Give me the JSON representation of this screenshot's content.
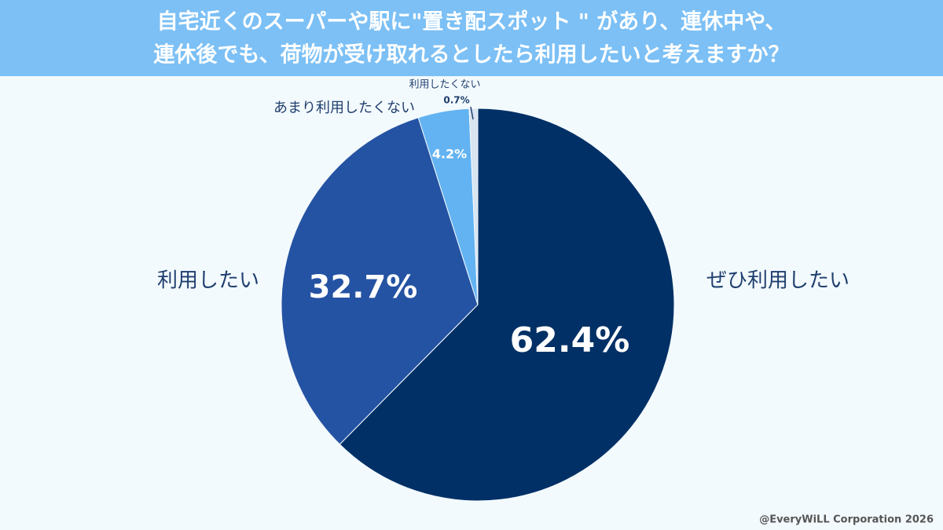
{
  "chart_data": {
    "type": "pie",
    "title": [
      "自宅近くのスーパーや駅に\"置き配スポット \" があり、連休中や、",
      "連休後でも、荷物が受け取れるとしたら利用したいと考えますか？"
    ],
    "categories": [
      "ぜひ利用したい",
      "利用したい",
      "あまり利用したくない",
      "利用したくない"
    ],
    "values": [
      62.4,
      32.7,
      4.2,
      0.7
    ],
    "value_labels": [
      "62.4%",
      "32.7%",
      "4.2%",
      "0.7%"
    ],
    "colors": [
      "#003066",
      "#2553a3",
      "#63b3f2",
      "#d8e4f0"
    ],
    "source": "@EveryWiLL Corporation 2026"
  }
}
